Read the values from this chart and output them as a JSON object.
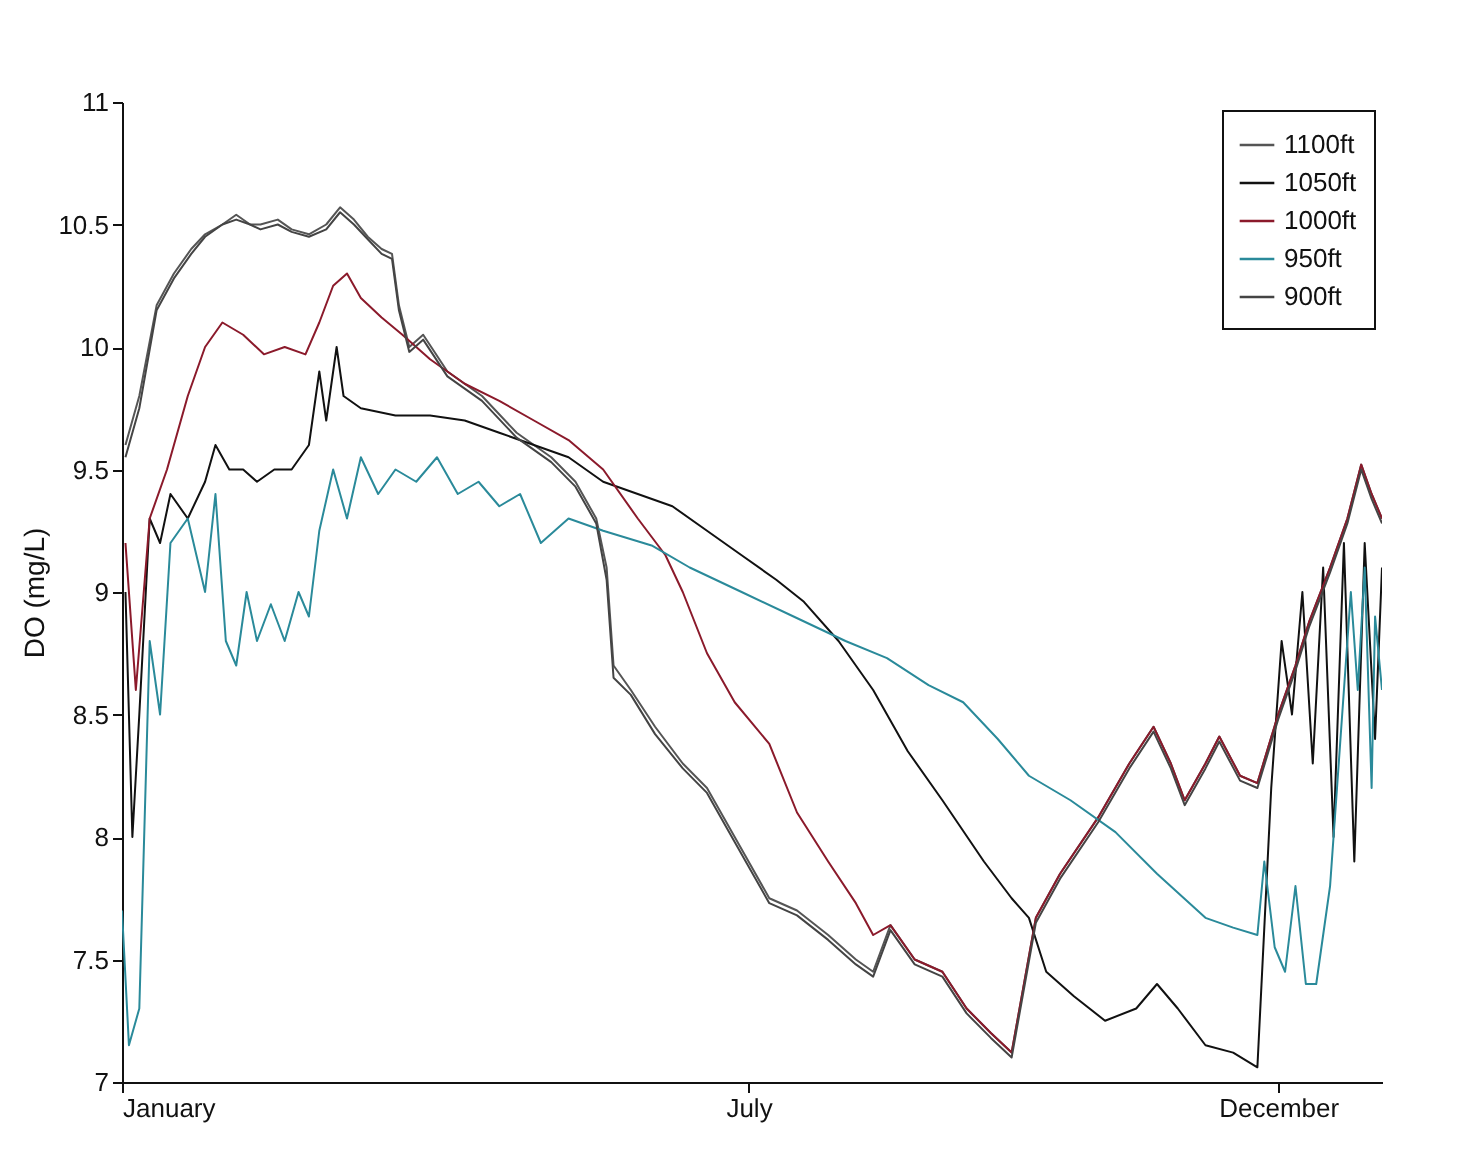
{
  "chart_data": {
    "type": "line",
    "ylabel": "DO (mg/L)",
    "xlim": [
      "--01-01",
      "--12-31"
    ],
    "xticks": [
      {
        "value": "--01-01",
        "label": "January"
      },
      {
        "value": "--07-01",
        "label": "July"
      },
      {
        "value": "--12-01",
        "label": "December"
      }
    ],
    "ylim": [
      7,
      11
    ],
    "yticks": [
      7,
      7.5,
      8,
      8.5,
      9,
      9.5,
      10,
      10.5,
      11
    ],
    "grid": false,
    "legend": "top right",
    "line_style": "solid",
    "marker": "none",
    "series": [
      {
        "name": "1100ft",
        "color": "#555555",
        "x": [
          "--01-02",
          "--01-06",
          "--01-11",
          "--01-16",
          "--01-21",
          "--01-25",
          "--01-30",
          "--02-03",
          "--02-07",
          "--02-10",
          "--02-15",
          "--02-19",
          "--02-24",
          "--03-01",
          "--03-05",
          "--03-09",
          "--03-13",
          "--03-17",
          "--03-20",
          "--03-22",
          "--03-25",
          "--03-29",
          "--04-05",
          "--04-15",
          "--04-25",
          "--05-05",
          "--05-12",
          "--05-18",
          "--05-21",
          "--05-23",
          "--05-28",
          "--06-04",
          "--06-12",
          "--06-19",
          "--06-27",
          "--07-07",
          "--07-15",
          "--07-24",
          "--08-01",
          "--08-06",
          "--08-11",
          "--08-18",
          "--08-26",
          "--09-02",
          "--09-09",
          "--09-15",
          "--09-22",
          "--09-29",
          "--10-10",
          "--10-19",
          "--10-26",
          "--10-31",
          "--11-04",
          "--11-10",
          "--11-14",
          "--11-20",
          "--11-25",
          "--12-01",
          "--12-06",
          "--12-10",
          "--12-16",
          "--12-21",
          "--12-25",
          "--12-28",
          "--12-31"
        ],
        "values": [
          9.6,
          9.8,
          10.17,
          10.3,
          10.4,
          10.46,
          10.5,
          10.54,
          10.5,
          10.5,
          10.52,
          10.48,
          10.46,
          10.5,
          10.57,
          10.52,
          10.45,
          10.4,
          10.38,
          10.17,
          10.0,
          10.05,
          9.9,
          9.8,
          9.65,
          9.55,
          9.45,
          9.3,
          9.1,
          8.7,
          8.6,
          8.45,
          8.3,
          8.2,
          8.0,
          7.75,
          7.7,
          7.6,
          7.5,
          7.45,
          7.64,
          7.5,
          7.45,
          7.3,
          7.2,
          7.12,
          7.67,
          7.85,
          8.08,
          8.3,
          8.45,
          8.3,
          8.15,
          8.3,
          8.41,
          8.25,
          8.22,
          8.5,
          8.7,
          8.88,
          9.1,
          9.3,
          9.52,
          9.4,
          9.3
        ]
      },
      {
        "name": "1050ft",
        "color": "#111111",
        "x": [
          "--01-02",
          "--01-04",
          "--01-06",
          "--01-09",
          "--01-12",
          "--01-15",
          "--01-20",
          "--01-25",
          "--01-28",
          "--02-01",
          "--02-05",
          "--02-09",
          "--02-14",
          "--02-19",
          "--02-24",
          "--02-27",
          "--03-01",
          "--03-04",
          "--03-06",
          "--03-11",
          "--03-21",
          "--03-31",
          "--04-10",
          "--04-20",
          "--04-30",
          "--05-10",
          "--05-20",
          "--05-30",
          "--06-09",
          "--06-19",
          "--06-29",
          "--07-09",
          "--07-17",
          "--07-27",
          "--08-06",
          "--08-16",
          "--08-26",
          "--09-07",
          "--09-15",
          "--09-20",
          "--09-25",
          "--10-03",
          "--10-12",
          "--10-21",
          "--10-27",
          "--11-02",
          "--11-10",
          "--11-18",
          "--11-25",
          "--11-29",
          "--12-02",
          "--12-05",
          "--12-08",
          "--12-11",
          "--12-14",
          "--12-17",
          "--12-20",
          "--12-23",
          "--12-26",
          "--12-29",
          "--12-31"
        ],
        "values": [
          9.0,
          8.0,
          8.5,
          9.3,
          9.2,
          9.4,
          9.3,
          9.45,
          9.6,
          9.5,
          9.5,
          9.45,
          9.5,
          9.5,
          9.6,
          9.9,
          9.7,
          10.0,
          9.8,
          9.75,
          9.72,
          9.72,
          9.7,
          9.65,
          9.6,
          9.55,
          9.45,
          9.4,
          9.35,
          9.25,
          9.15,
          9.05,
          8.96,
          8.8,
          8.6,
          8.35,
          8.15,
          7.9,
          7.75,
          7.67,
          7.45,
          7.35,
          7.25,
          7.3,
          7.4,
          7.3,
          7.15,
          7.12,
          7.06,
          8.2,
          8.8,
          8.5,
          9.0,
          8.3,
          9.1,
          8.0,
          9.2,
          7.9,
          9.2,
          8.4,
          9.1
        ]
      },
      {
        "name": "1000ft",
        "color": "#8b1a2b",
        "x": [
          "--01-02",
          "--01-05",
          "--01-09",
          "--01-14",
          "--01-20",
          "--01-25",
          "--01-30",
          "--02-05",
          "--02-11",
          "--02-17",
          "--02-23",
          "--02-27",
          "--03-03",
          "--03-07",
          "--03-11",
          "--03-17",
          "--03-23",
          "--03-31",
          "--04-10",
          "--04-20",
          "--04-30",
          "--05-10",
          "--05-20",
          "--05-30",
          "--06-07",
          "--06-12",
          "--06-19",
          "--06-27",
          "--07-07",
          "--07-15",
          "--07-24",
          "--08-01",
          "--08-06",
          "--08-11",
          "--08-18",
          "--08-26",
          "--09-02",
          "--09-09",
          "--09-15",
          "--09-22",
          "--09-29",
          "--10-10",
          "--10-19",
          "--10-26",
          "--10-31",
          "--11-04",
          "--11-10",
          "--11-14",
          "--11-20",
          "--11-25",
          "--12-01",
          "--12-06",
          "--12-10",
          "--12-16",
          "--12-21",
          "--12-25",
          "--12-28",
          "--12-31"
        ],
        "values": [
          9.2,
          8.6,
          9.3,
          9.5,
          9.8,
          10.0,
          10.1,
          10.05,
          9.97,
          10.0,
          9.97,
          10.1,
          10.25,
          10.3,
          10.2,
          10.12,
          10.05,
          9.95,
          9.85,
          9.78,
          9.7,
          9.62,
          9.5,
          9.3,
          9.15,
          9.0,
          8.75,
          8.55,
          8.38,
          8.1,
          7.9,
          7.73,
          7.6,
          7.64,
          7.5,
          7.45,
          7.3,
          7.2,
          7.12,
          7.67,
          7.85,
          8.08,
          8.3,
          8.45,
          8.3,
          8.15,
          8.3,
          8.41,
          8.25,
          8.22,
          8.5,
          8.7,
          8.88,
          9.1,
          9.3,
          9.52,
          9.4,
          9.3
        ]
      },
      {
        "name": "950ft",
        "color": "#2a8a9a",
        "x": [
          "--01-01",
          "--01-03",
          "--01-06",
          "--01-09",
          "--01-12",
          "--01-15",
          "--01-20",
          "--01-25",
          "--01-28",
          "--01-31",
          "--02-03",
          "--02-06",
          "--02-09",
          "--02-13",
          "--02-17",
          "--02-21",
          "--02-24",
          "--02-27",
          "--03-03",
          "--03-07",
          "--03-11",
          "--03-16",
          "--03-21",
          "--03-27",
          "--04-02",
          "--04-08",
          "--04-14",
          "--04-20",
          "--04-26",
          "--05-02",
          "--05-10",
          "--05-20",
          "--06-03",
          "--06-14",
          "--06-29",
          "--07-14",
          "--07-29",
          "--08-10",
          "--08-22",
          "--09-01",
          "--09-11",
          "--09-20",
          "--10-02",
          "--10-15",
          "--10-27",
          "--11-10",
          "--11-18",
          "--11-25",
          "--11-27",
          "--11-30",
          "--12-03",
          "--12-06",
          "--12-09",
          "--12-12",
          "--12-16",
          "--12-19",
          "--12-22",
          "--12-24",
          "--12-26",
          "--12-28",
          "--12-29",
          "--12-31"
        ],
        "values": [
          7.7,
          7.15,
          7.3,
          8.8,
          8.5,
          9.2,
          9.3,
          9.0,
          9.4,
          8.8,
          8.7,
          9.0,
          8.8,
          8.95,
          8.8,
          9.0,
          8.9,
          9.25,
          9.5,
          9.3,
          9.55,
          9.4,
          9.5,
          9.45,
          9.55,
          9.4,
          9.45,
          9.35,
          9.4,
          9.2,
          9.3,
          9.25,
          9.19,
          9.1,
          9.0,
          8.9,
          8.8,
          8.73,
          8.62,
          8.55,
          8.4,
          8.25,
          8.15,
          8.02,
          7.85,
          7.67,
          7.63,
          7.6,
          7.9,
          7.55,
          7.45,
          7.8,
          7.4,
          7.4,
          7.8,
          8.4,
          9.0,
          8.6,
          9.1,
          8.2,
          8.9,
          8.6
        ]
      },
      {
        "name": "900ft",
        "color": "#444444",
        "x": [
          "--01-02",
          "--01-06",
          "--01-11",
          "--01-16",
          "--01-21",
          "--01-25",
          "--01-30",
          "--02-03",
          "--02-07",
          "--02-10",
          "--02-15",
          "--02-19",
          "--02-24",
          "--03-01",
          "--03-05",
          "--03-09",
          "--03-13",
          "--03-17",
          "--03-20",
          "--03-22",
          "--03-25",
          "--03-29",
          "--04-05",
          "--04-15",
          "--04-25",
          "--05-05",
          "--05-12",
          "--05-18",
          "--05-21",
          "--05-23",
          "--05-28",
          "--06-04",
          "--06-12",
          "--06-19",
          "--06-27",
          "--07-07",
          "--07-15",
          "--07-24",
          "--08-01",
          "--08-06",
          "--08-11",
          "--08-18",
          "--08-26",
          "--09-02",
          "--09-09",
          "--09-15",
          "--09-22",
          "--09-29",
          "--10-10",
          "--10-19",
          "--10-26",
          "--10-31",
          "--11-04",
          "--11-10",
          "--11-14",
          "--11-20",
          "--11-25",
          "--12-01",
          "--12-06",
          "--12-10",
          "--12-16",
          "--12-21",
          "--12-25",
          "--12-28",
          "--12-31"
        ],
        "values": [
          9.55,
          9.75,
          10.15,
          10.28,
          10.38,
          10.45,
          10.5,
          10.52,
          10.5,
          10.48,
          10.5,
          10.47,
          10.45,
          10.48,
          10.55,
          10.5,
          10.44,
          10.38,
          10.36,
          10.15,
          9.98,
          10.03,
          9.88,
          9.78,
          9.63,
          9.53,
          9.43,
          9.28,
          9.05,
          8.65,
          8.58,
          8.42,
          8.28,
          8.18,
          7.98,
          7.73,
          7.68,
          7.58,
          7.48,
          7.43,
          7.62,
          7.48,
          7.43,
          7.28,
          7.18,
          7.1,
          7.65,
          7.83,
          8.06,
          8.28,
          8.43,
          8.28,
          8.13,
          8.28,
          8.39,
          8.23,
          8.2,
          8.48,
          8.68,
          8.86,
          9.08,
          9.28,
          9.5,
          9.38,
          9.28
        ]
      }
    ]
  }
}
